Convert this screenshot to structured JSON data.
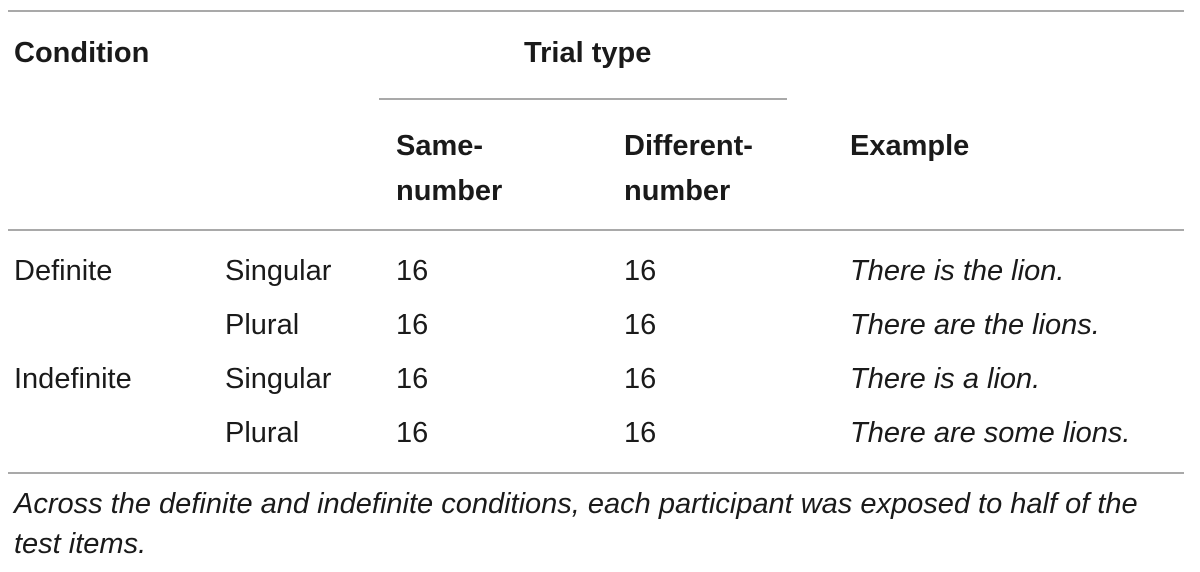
{
  "table": {
    "headers": {
      "condition": "Condition",
      "trial_type": "Trial type",
      "same_number": [
        "Same-",
        "number"
      ],
      "different_number": [
        "Different-",
        "number"
      ],
      "example": "Example"
    },
    "rows": [
      {
        "condition": "Definite",
        "number": "Singular",
        "same": "16",
        "different": "16",
        "example": "There is the lion."
      },
      {
        "condition": "",
        "number": "Plural",
        "same": "16",
        "different": "16",
        "example": "There are the lions."
      },
      {
        "condition": "Indefinite",
        "number": "Singular",
        "same": "16",
        "different": "16",
        "example": "There is a lion."
      },
      {
        "condition": "",
        "number": "Plural",
        "same": "16",
        "different": "16",
        "example": "There are some lions."
      }
    ],
    "footnote": "Across the definite and indefinite conditions, each participant was exposed to half of the test items."
  }
}
